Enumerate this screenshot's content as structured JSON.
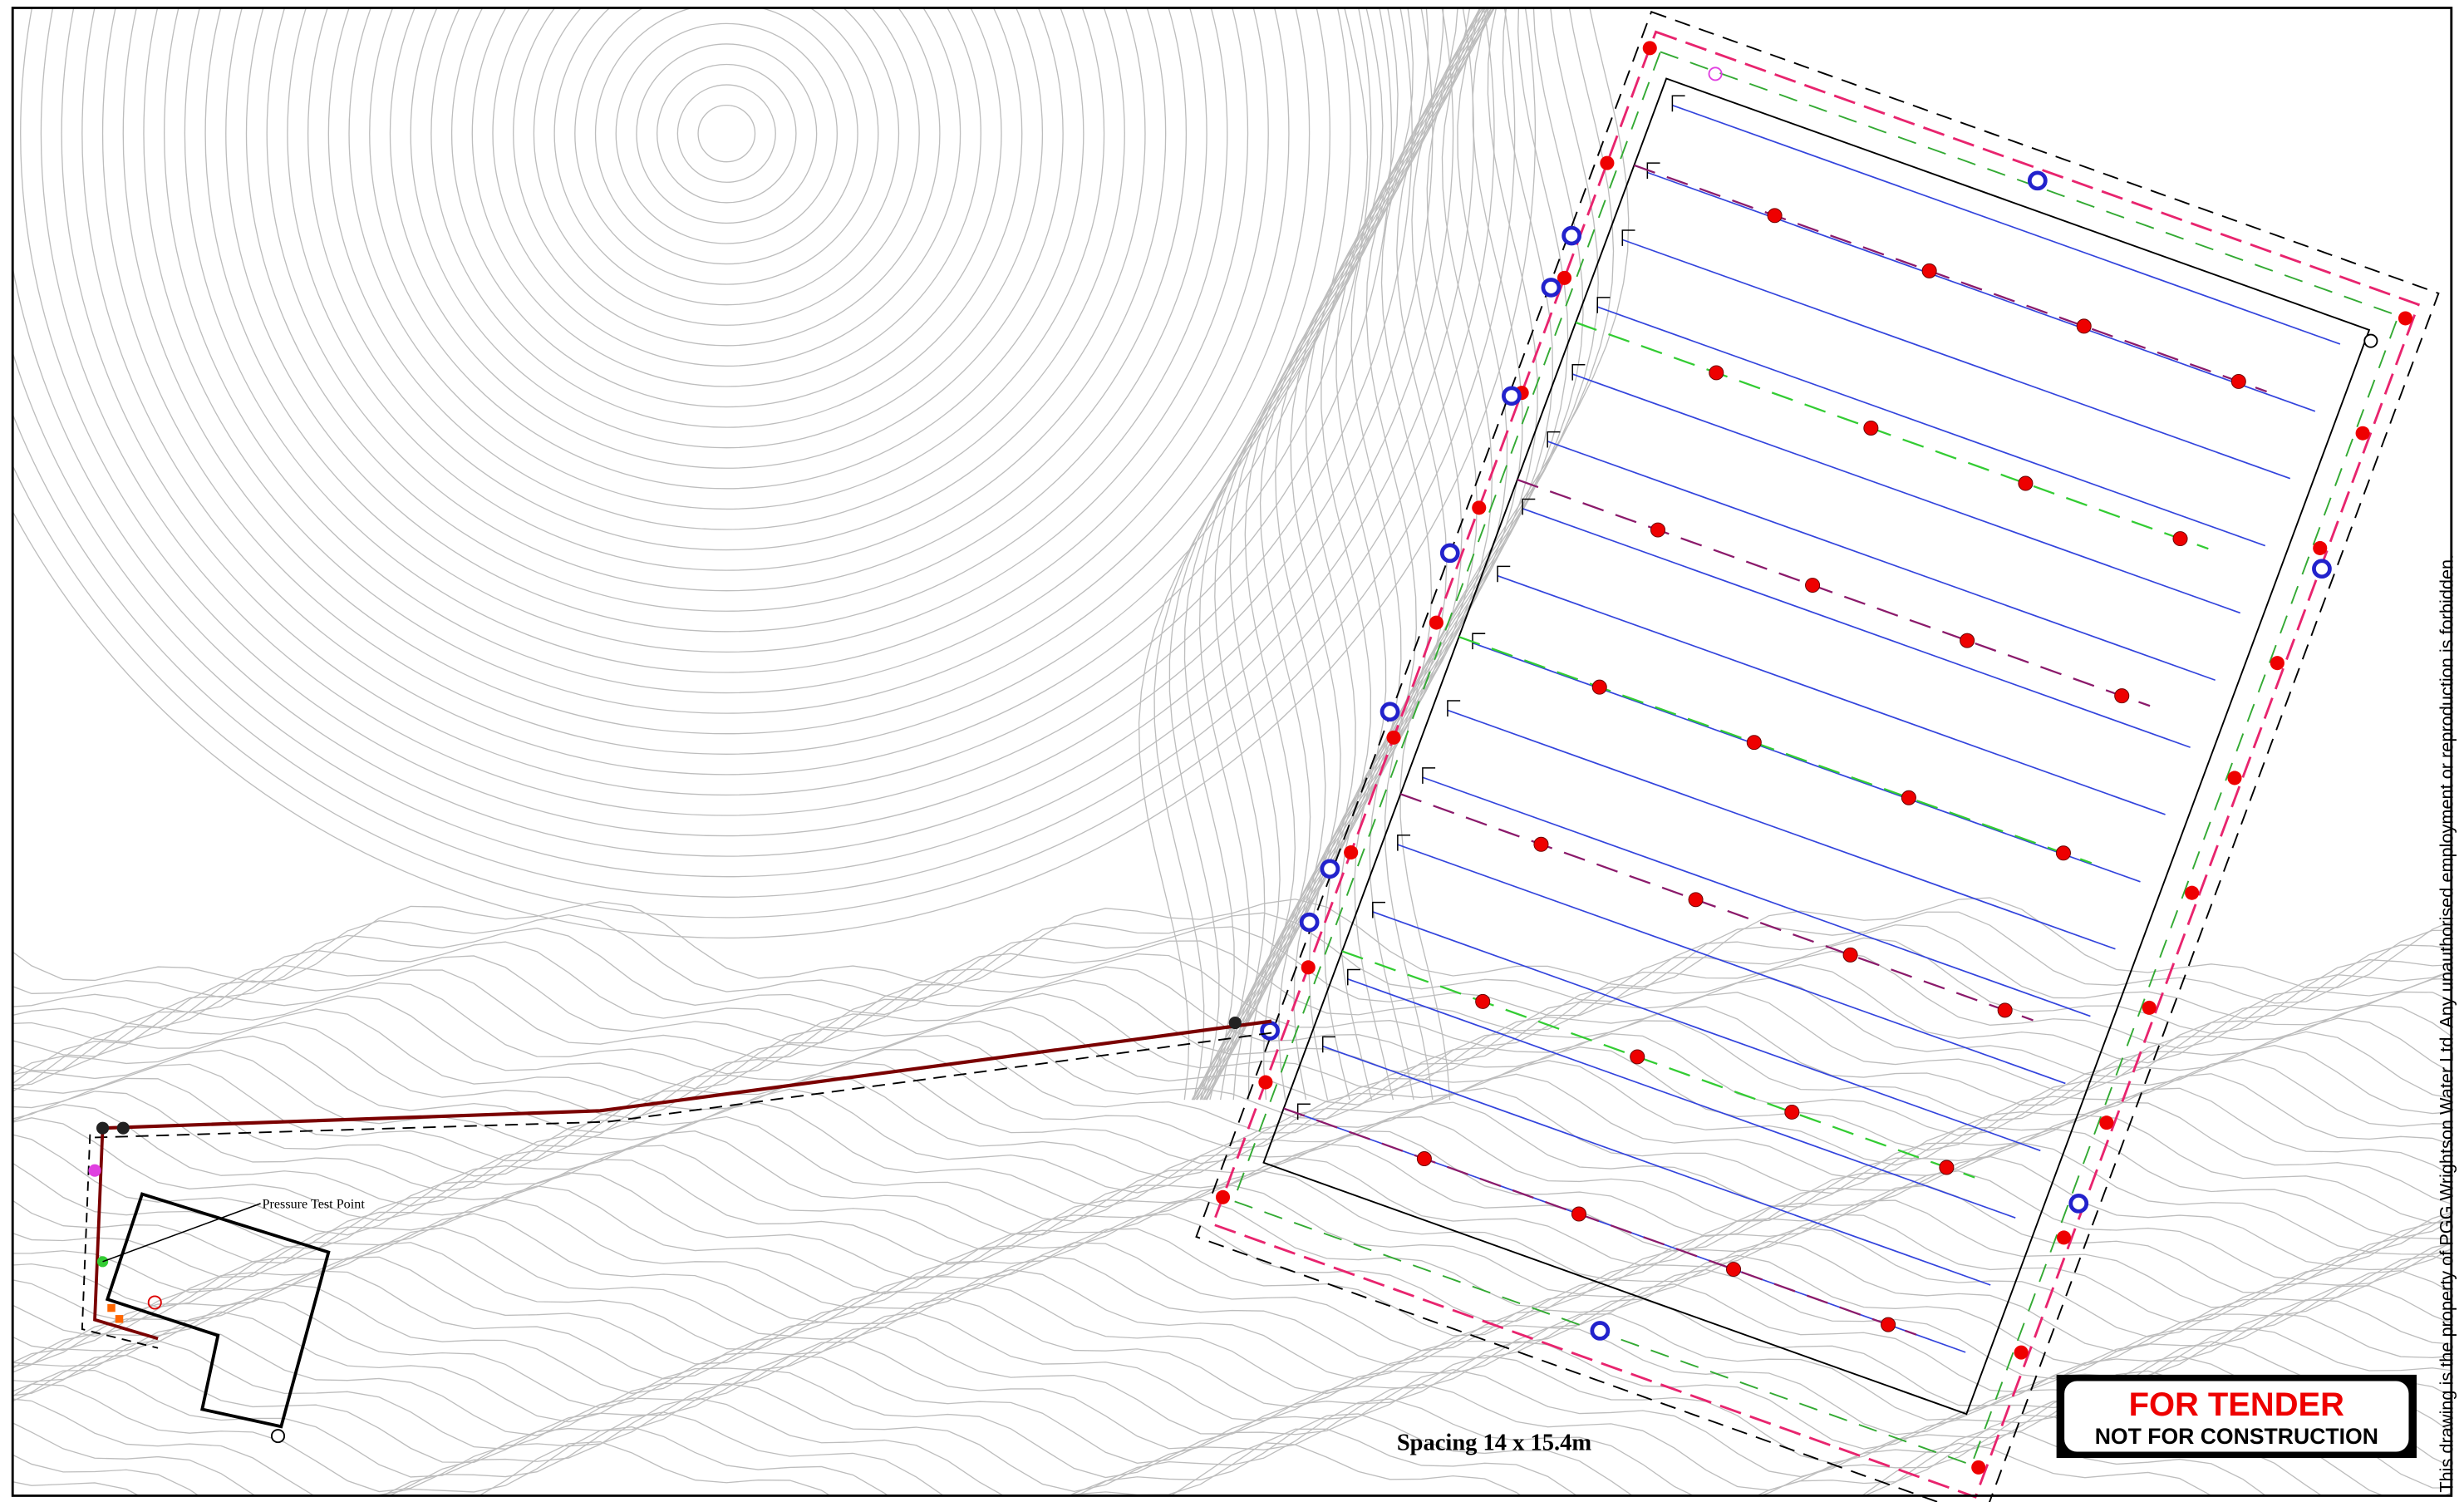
{
  "annotations": {
    "pressure_test_point": "Pressure Test Point",
    "spacing": "Spacing 14 x 15.4m"
  },
  "stamp": {
    "line1": "FOR TENDER",
    "line2": "NOT FOR CONSTRUCTION"
  },
  "copyright": "This drawing is the property of PGG Wrightson Water Ltd.  Any unauthorised employment or reproduction is forbidden."
}
